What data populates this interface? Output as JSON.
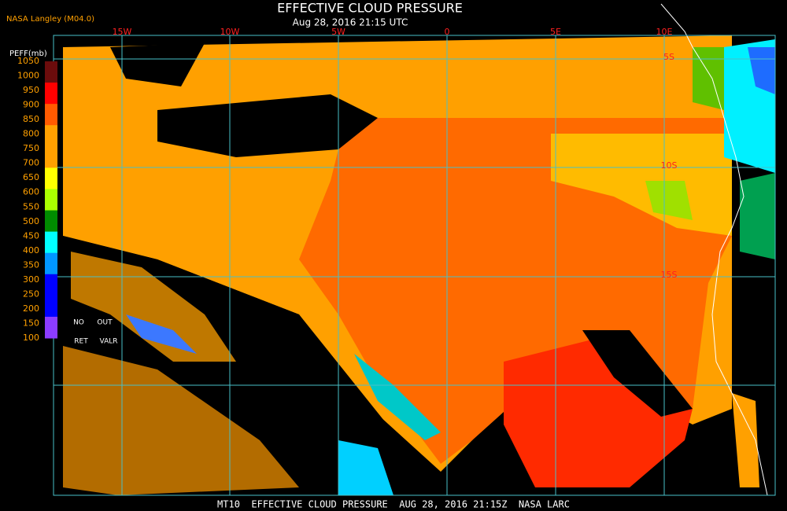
{
  "header": {
    "source": "NASA Langley (M04.0)",
    "title": "EFFECTIVE CLOUD PRESSURE",
    "subtitle": "Aug 28, 2016 21:15 UTC"
  },
  "colorbar": {
    "label": "PEFF(mb)",
    "ticks": [
      "1050",
      "1000",
      "950",
      "900",
      "850",
      "800",
      "750",
      "700",
      "650",
      "600",
      "550",
      "500",
      "450",
      "400",
      "350",
      "300",
      "250",
      "200",
      "150",
      "100"
    ],
    "colors": [
      "#6b0c0c",
      "#ff0000",
      "#ff5a00",
      "#ffa000",
      "#ffa000",
      "#ffff00",
      "#aaff00",
      "#008c00",
      "#00ffff",
      "#0096ff",
      "#0000ff",
      "#0000ff",
      "#8c3cff"
    ],
    "no_data": [
      "NO",
      "OUT",
      "RET",
      "VALR"
    ]
  },
  "grid": {
    "lon_labels": [
      "15W",
      "10W",
      "5W",
      "0",
      "5E",
      "10E"
    ],
    "lat_labels": [
      "5S",
      "10S",
      "15S"
    ]
  },
  "footer": "MT10  EFFECTIVE CLOUD PRESSURE  AUG 28, 2016 21:15Z  NASA LARC"
}
